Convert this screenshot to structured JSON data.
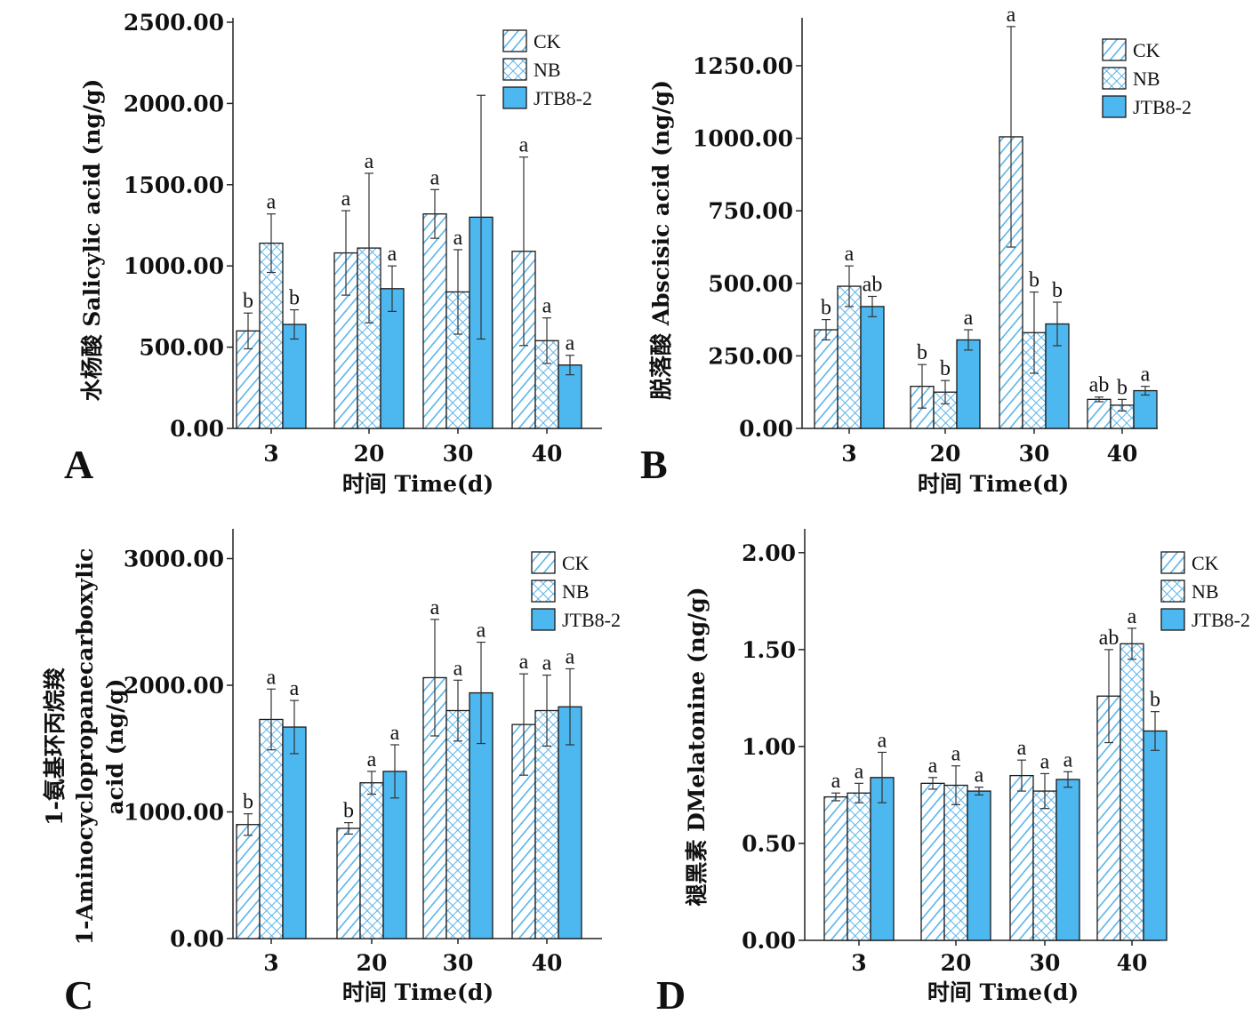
{
  "chart_data": [
    {
      "type": "bar",
      "panel": "A",
      "categories": [
        "3",
        "20",
        "30",
        "40"
      ],
      "xlabel": "时间 Time(d)",
      "ylabel": "水杨酸 Salicylic acid (ng/g)",
      "ylabel_lines": [
        "水杨酸 Salicylic acid (ng/g)"
      ],
      "ylim": [
        0,
        2500
      ],
      "yticks": [
        "0.00",
        "500.00",
        "1000.00",
        "1500.00",
        "2000.00",
        "2500.00"
      ],
      "legend": [
        "CK",
        "NB",
        "JTB8-2"
      ],
      "legend_position": "top-right",
      "series": [
        {
          "name": "CK",
          "values": [
            600,
            1080,
            1320,
            1090
          ],
          "errors": [
            110,
            260,
            150,
            580
          ],
          "sig": [
            "b",
            "a",
            "a",
            "a"
          ]
        },
        {
          "name": "NB",
          "values": [
            1140,
            1110,
            840,
            540
          ],
          "errors": [
            180,
            460,
            260,
            140
          ],
          "sig": [
            "a",
            "a",
            "a",
            "a"
          ]
        },
        {
          "name": "JTB8-2",
          "values": [
            640,
            860,
            1300,
            390
          ],
          "errors": [
            90,
            140,
            750,
            60
          ],
          "sig": [
            "b",
            "a",
            "",
            "a"
          ]
        }
      ]
    },
    {
      "type": "bar",
      "panel": "B",
      "categories": [
        "3",
        "20",
        "30",
        "40"
      ],
      "xlabel": "时间 Time(d)",
      "ylabel": "脱落酸 Abscisic acid (ng/g)",
      "ylabel_lines": [
        "脱落酸 Abscisic acid (ng/g)"
      ],
      "ylim": [
        0,
        1400
      ],
      "yticks": [
        "0.00",
        "250.00",
        "500.00",
        "750.00",
        "1000.00",
        "1250.00"
      ],
      "legend": [
        "CK",
        "NB",
        "JTB8-2"
      ],
      "legend_position": "top-right",
      "series": [
        {
          "name": "CK",
          "values": [
            340,
            145,
            1005,
            100
          ],
          "errors": [
            35,
            75,
            380,
            8
          ],
          "sig": [
            "b",
            "b",
            "a",
            "ab"
          ]
        },
        {
          "name": "NB",
          "values": [
            490,
            125,
            330,
            80
          ],
          "errors": [
            70,
            40,
            140,
            20
          ],
          "sig": [
            "a",
            "b",
            "b",
            "b"
          ]
        },
        {
          "name": "JTB8-2",
          "values": [
            420,
            305,
            360,
            130
          ],
          "errors": [
            35,
            35,
            75,
            15
          ],
          "sig": [
            "ab",
            "a",
            "b",
            "a"
          ]
        }
      ]
    },
    {
      "type": "bar",
      "panel": "C",
      "categories": [
        "3",
        "20",
        "30",
        "40"
      ],
      "xlabel": "时间 Time(d)",
      "ylabel": "1-氨基环丙烷羧 1-Aminocyclopropanecarboxylic acid (ng/g)",
      "ylabel_lines": [
        "1-氨基环丙烷羧",
        "1-Aminocyclopropanecarboxylic",
        "acid (ng/g)"
      ],
      "ylim": [
        0,
        3200
      ],
      "yticks": [
        "0.00",
        "1000.00",
        "2000.00",
        "3000.00"
      ],
      "legend": [
        "CK",
        "NB",
        "JTB8-2"
      ],
      "legend_position": "top-right",
      "series": [
        {
          "name": "CK",
          "values": [
            900,
            870,
            2060,
            1690
          ],
          "errors": [
            85,
            45,
            460,
            400
          ],
          "sig": [
            "b",
            "b",
            "a",
            "a"
          ]
        },
        {
          "name": "NB",
          "values": [
            1730,
            1230,
            1800,
            1800
          ],
          "errors": [
            240,
            90,
            240,
            280
          ],
          "sig": [
            "a",
            "a",
            "a",
            "a"
          ]
        },
        {
          "name": "JTB8-2",
          "values": [
            1670,
            1320,
            1940,
            1830
          ],
          "errors": [
            210,
            210,
            400,
            300
          ],
          "sig": [
            "a",
            "a",
            "a",
            "a"
          ]
        }
      ]
    },
    {
      "type": "bar",
      "panel": "D",
      "categories": [
        "3",
        "20",
        "30",
        "40"
      ],
      "xlabel": "时间 Time(d)",
      "ylabel": "褪黑素 DMelatonine (ng/g)",
      "ylabel_lines": [
        "褪黑素 DMelatonine (ng/g)"
      ],
      "ylim": [
        0,
        2.1
      ],
      "yticks": [
        "0.00",
        "0.50",
        "1.00",
        "1.50",
        "2.00"
      ],
      "legend": [
        "CK",
        "NB",
        "JTB8-2"
      ],
      "legend_position": "top-right",
      "series": [
        {
          "name": "CK",
          "values": [
            0.74,
            0.81,
            0.85,
            1.26
          ],
          "errors": [
            0.02,
            0.03,
            0.08,
            0.24
          ],
          "sig": [
            "a",
            "a",
            "a",
            "ab"
          ]
        },
        {
          "name": "NB",
          "values": [
            0.76,
            0.8,
            0.77,
            1.53
          ],
          "errors": [
            0.05,
            0.1,
            0.09,
            0.08
          ],
          "sig": [
            "a",
            "a",
            "a",
            "a"
          ]
        },
        {
          "name": "JTB8-2",
          "values": [
            0.84,
            0.77,
            0.83,
            1.08
          ],
          "errors": [
            0.13,
            0.02,
            0.04,
            0.1
          ],
          "sig": [
            "a",
            "a",
            "a",
            "b"
          ]
        }
      ]
    }
  ]
}
